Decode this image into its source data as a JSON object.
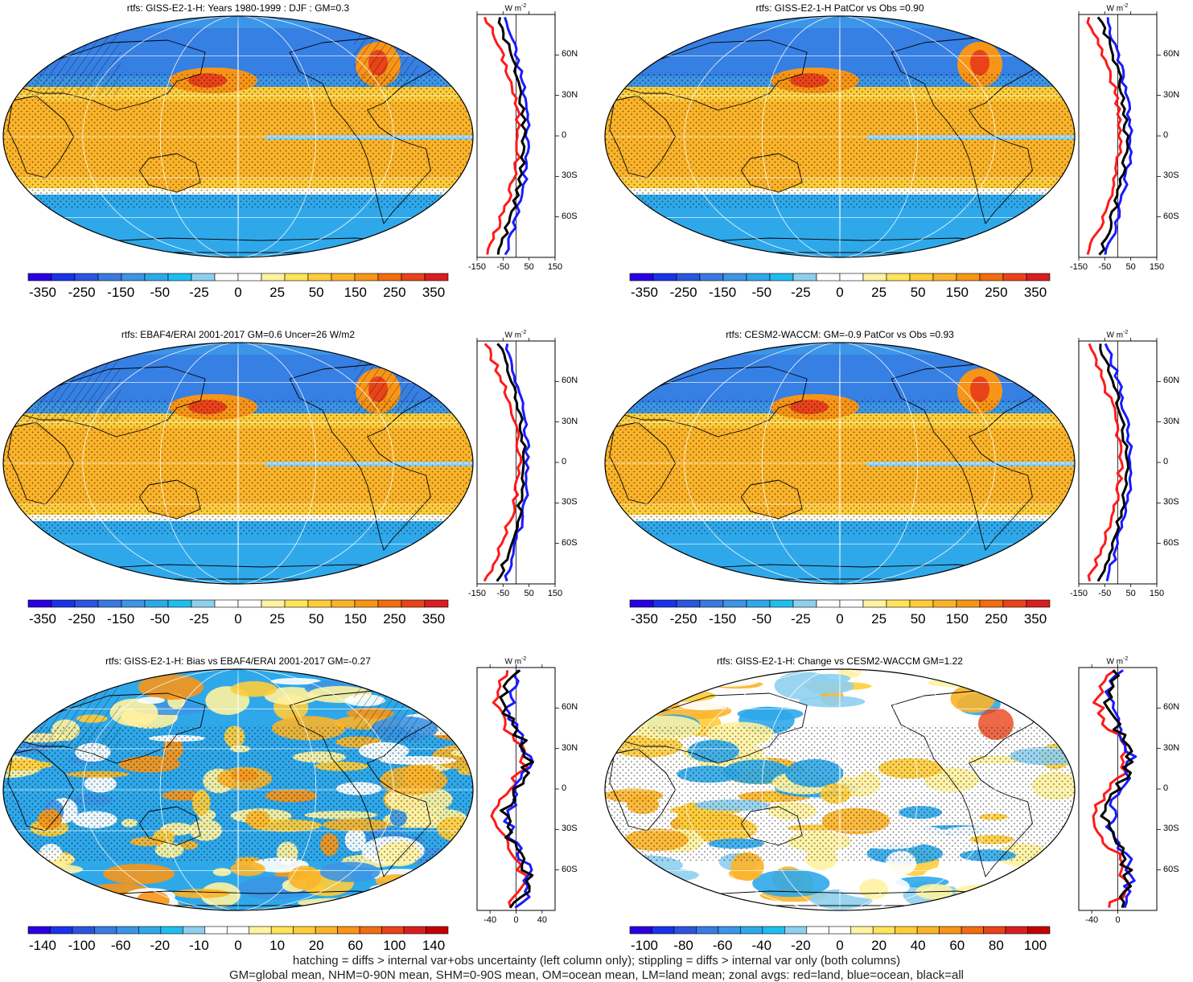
{
  "colors": {
    "bar_16": [
      "#2a00e0",
      "#1a33e8",
      "#2b55dd",
      "#3a7ae0",
      "#3c95e6",
      "#2fa8ea",
      "#1fbdf0",
      "#8ecfee",
      "#ffffff",
      "#ffffff",
      "#fff2a0",
      "#ffe35a",
      "#ffcc3a",
      "#fbb42a",
      "#f79518",
      "#f06d12",
      "#e9431a",
      "#d81e20"
    ],
    "bar_last": [
      "#2a00e0",
      "#1a33e8",
      "#2b55dd",
      "#3a7ae0",
      "#3c95e6",
      "#2fa8ea",
      "#1fbdf0",
      "#8ecfee",
      "#ffffff",
      "#ffffff",
      "#fff2a0",
      "#ffe35a",
      "#ffcc3a",
      "#fbb42a",
      "#f79518",
      "#f06d12",
      "#e9431a",
      "#d81e20",
      "#c20000"
    ],
    "land": "#ff1a1a",
    "ocean": "#1a1aff",
    "all": "#000000"
  },
  "panels": [
    {
      "title": "rtfs: GISS-E2-1-H: Years 1980-1999 : DJF : GM=0.3",
      "cbar_labels": [
        "-350",
        "-250",
        "-150",
        "-50",
        "-25",
        "0",
        "25",
        "50",
        "150",
        "250",
        "350"
      ],
      "zonal_ticks": [
        "-150",
        "-50",
        "50",
        "150"
      ],
      "zonal_range": [
        -150,
        150
      ],
      "style": "clim"
    },
    {
      "title": "rtfs: GISS-E2-1-H PatCor vs Obs =0.90",
      "cbar_labels": [
        "-350",
        "-250",
        "-150",
        "-50",
        "-25",
        "0",
        "25",
        "50",
        "150",
        "250",
        "350"
      ],
      "zonal_ticks": [
        "-150",
        "-50",
        "50",
        "150"
      ],
      "zonal_range": [
        -150,
        150
      ],
      "style": "clim"
    },
    {
      "title": "rtfs: EBAF4/ERAI 2001-2017 GM=0.6 Uncer=26 W/m2",
      "cbar_labels": [
        "-350",
        "-250",
        "-150",
        "-50",
        "-25",
        "0",
        "25",
        "50",
        "150",
        "250",
        "350"
      ],
      "zonal_ticks": [
        "-150",
        "-50",
        "50",
        "150"
      ],
      "zonal_range": [
        -150,
        150
      ],
      "style": "clim"
    },
    {
      "title": "rtfs: CESM2-WACCM: GM=-0.9 PatCor vs Obs =0.93",
      "cbar_labels": [
        "-350",
        "-250",
        "-150",
        "-50",
        "-25",
        "0",
        "25",
        "50",
        "150",
        "250",
        "350"
      ],
      "zonal_ticks": [
        "-150",
        "-50",
        "50",
        "150"
      ],
      "zonal_range": [
        -150,
        150
      ],
      "style": "clim"
    },
    {
      "title": "rtfs: GISS-E2-1-H: Bias vs EBAF4/ERAI 2001-2017 GM=-0.27",
      "cbar_labels": [
        "-140",
        "-100",
        "-60",
        "-20",
        "-10",
        "0",
        "10",
        "20",
        "60",
        "100",
        "140"
      ],
      "zonal_ticks": [
        "-40",
        "0",
        "40"
      ],
      "zonal_range": [
        -60,
        60
      ],
      "style": "bias"
    },
    {
      "title": "rtfs: GISS-E2-1-H: Change vs CESM2-WACCM GM=1.22",
      "cbar_labels": [
        "-100",
        "-80",
        "-60",
        "-40",
        "-20",
        "0",
        "20",
        "40",
        "60",
        "80",
        "100"
      ],
      "zonal_ticks": [
        "-40",
        "0"
      ],
      "zonal_range": [
        -60,
        60
      ],
      "style": "change"
    }
  ],
  "zonal_unit": "W m",
  "zonal_unit_sup": "-2",
  "lat_labels": [
    "60N",
    "30N",
    "0",
    "30S",
    "60S"
  ],
  "footer": {
    "line1": "hatching = diffs > internal var+obs uncertainty (left column only); stippling = diffs > internal var only (both columns)",
    "line2": "GM=global mean, NHM=0-90N mean, SHM=0-90S mean, OM=ocean mean, LM=land mean; zonal avgs: red=land, blue=ocean, black=all"
  },
  "chart_data": [
    {
      "type": "heatmap",
      "title": "rtfs: GISS-E2-1-H: Years 1980-1999 : DJF : GM=0.3",
      "legend": "colorbar bottom"
    },
    {
      "type": "heatmap",
      "title": "rtfs: GISS-E2-1-H PatCor vs Obs =0.90",
      "legend": "colorbar bottom"
    },
    {
      "type": "heatmap",
      "title": "rtfs: EBAF4/ERAI 2001-2017 GM=0.6 Uncer=26 W/m2",
      "legend": "colorbar bottom"
    },
    {
      "type": "heatmap",
      "title": "rtfs: CESM2-WACCM: GM=-0.9 PatCor vs Obs =0.93",
      "legend": "colorbar bottom"
    },
    {
      "type": "heatmap",
      "title": "rtfs: GISS-E2-1-H: Bias vs EBAF4/ERAI 2001-2017 GM=-0.27",
      "legend": "colorbar bottom"
    },
    {
      "type": "heatmap",
      "title": "rtfs: GISS-E2-1-H: Change vs CESM2-WACCM GM=1.22",
      "legend": "colorbar bottom"
    },
    {
      "type": "line",
      "xlabel": "",
      "ylabel": "",
      "xlim": [
        -150,
        150
      ],
      "ylim": [
        -90,
        90
      ],
      "series_colors": "red=land, blue=ocean, black=all"
    }
  ]
}
